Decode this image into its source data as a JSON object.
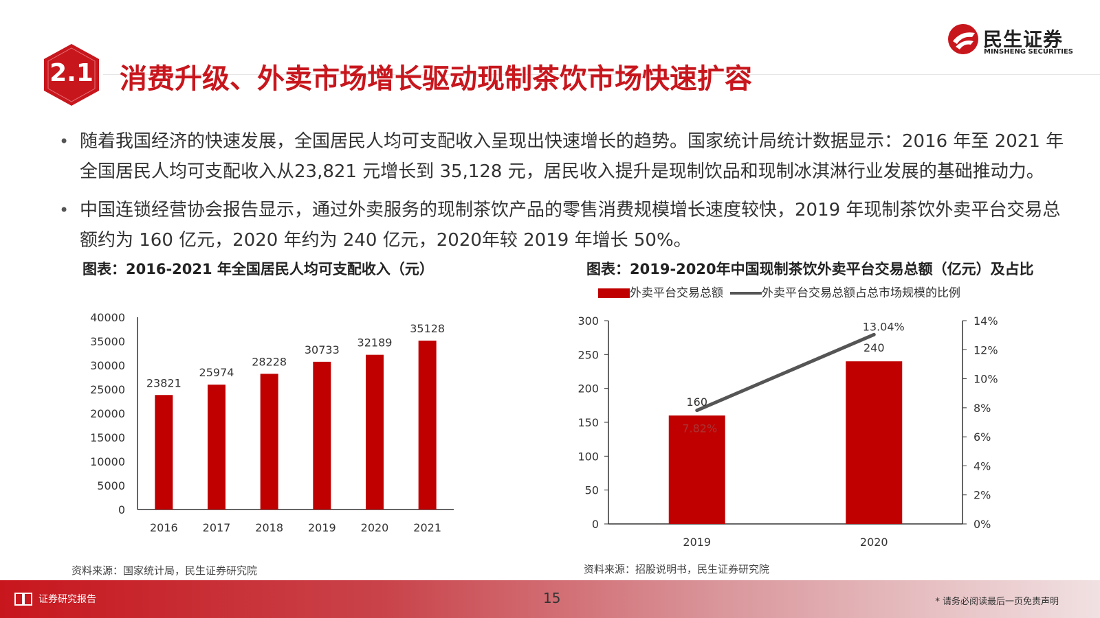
{
  "brand": {
    "name_cn": "民生证券",
    "name_en": "MINSHENG SECURITIES",
    "color": "#c8161d"
  },
  "header": {
    "section_number": "2.1",
    "title": "消费升级、外卖市场增长驱动现制茶饮市场快速扩容"
  },
  "bullets": [
    "随着我国经济的快速发展，全国居民人均可支配收入呈现出快速增长的趋势。国家统计局统计数据显示：2016 年至 2021 年全国居民人均可支配收入从23,821 元增长到 35,128 元，居民收入提升是现制饮品和现制冰淇淋行业发展的基础推动力。",
    "中国连锁经营协会报告显示，通过外卖服务的现制茶饮产品的零售消费规模增长速度较快，2019 年现制茶饮外卖平台交易总额约为 160 亿元，2020 年约为 240 亿元，2020年较 2019 年增长 50%。"
  ],
  "left_chart": {
    "heading": "图表：2016-2021 年全国居民人均可支配收入（元）",
    "source": "资料来源：国家统计局，民生证券研究院"
  },
  "right_chart": {
    "heading": "图表：2019-2020年中国现制茶饮外卖平台交易总额（亿元）及占比",
    "source": "资料来源：招股说明书，民生证券研究院",
    "legend_bar": "外卖平台交易总额",
    "legend_line": "外卖平台交易总额占总市场规模的比例"
  },
  "chart_data": [
    {
      "type": "bar",
      "categories": [
        "2016",
        "2017",
        "2018",
        "2019",
        "2020",
        "2021"
      ],
      "values": [
        23821,
        25974,
        28228,
        30733,
        32189,
        35128
      ],
      "ylim": [
        0,
        40000
      ],
      "yticks": [
        "0",
        "5000",
        "10000",
        "15000",
        "20000",
        "25000",
        "30000",
        "35000",
        "40000"
      ],
      "bar_color": "#c00000",
      "grid": false
    },
    {
      "type": "bar",
      "categories": [
        "2019",
        "2020"
      ],
      "series": [
        {
          "name": "外卖平台交易总额",
          "kind": "bar",
          "axis": "left",
          "values": [
            160,
            240
          ],
          "labels": [
            "160",
            "240"
          ],
          "color": "#c00000"
        },
        {
          "name": "外卖平台交易总额占总市场规模的比例",
          "kind": "line",
          "axis": "right",
          "values": [
            7.82,
            13.04
          ],
          "labels": [
            "7.82%",
            "13.04%"
          ],
          "color": "#555555"
        }
      ],
      "ylim_left": [
        0,
        300
      ],
      "yticks_left": [
        "0",
        "50",
        "100",
        "150",
        "200",
        "250",
        "300"
      ],
      "ylim_right": [
        0,
        14
      ],
      "yticks_right": [
        "0%",
        "2%",
        "4%",
        "6%",
        "8%",
        "10%",
        "12%",
        "14%"
      ],
      "legend": "top",
      "grid": false
    }
  ],
  "footer": {
    "left_text": "证券研究报告",
    "page_number": "15",
    "disclaimer": "* 请务必阅读最后一页免责声明"
  }
}
